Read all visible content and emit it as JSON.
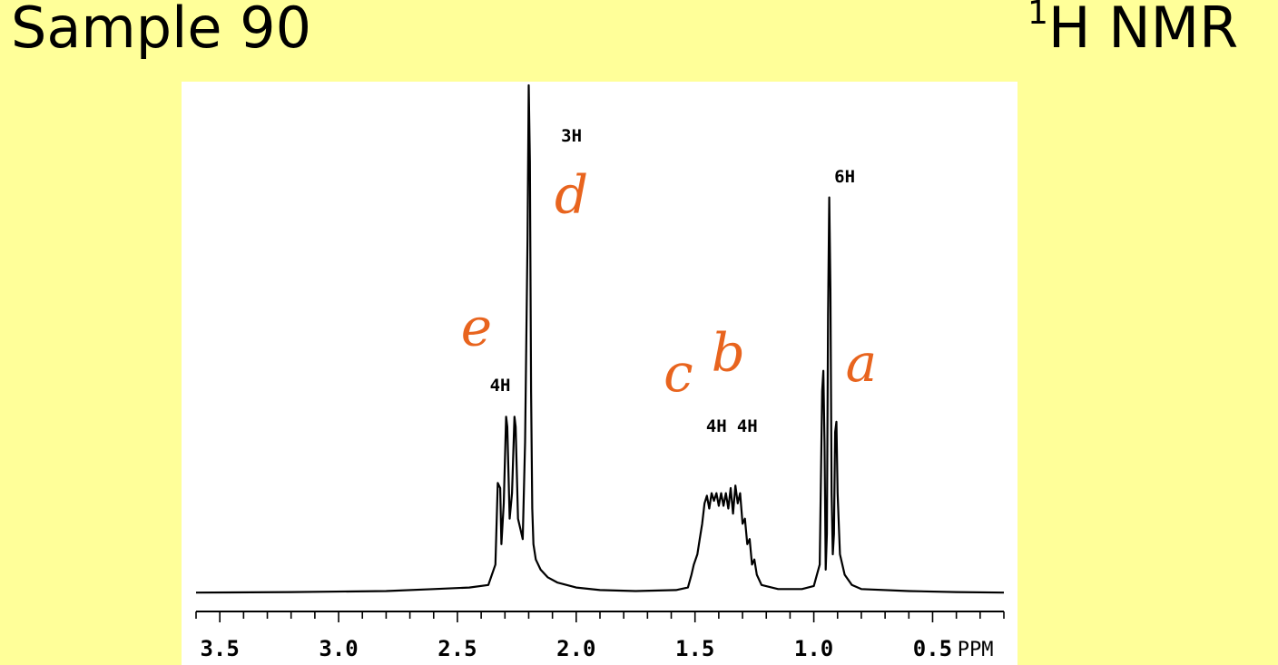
{
  "slide": {
    "title": "Sample 90",
    "subtitle_sup": "1",
    "subtitle_main": "H NMR"
  },
  "colors": {
    "background": "#FFFF99",
    "panel": "#FFFFFF",
    "trace": "#000000",
    "handwriting": "#E8641E"
  },
  "chart_data": {
    "type": "line",
    "title": "",
    "xlabel": "PPM",
    "ylabel": "",
    "x_reversed": true,
    "xlim": [
      3.6,
      0.2
    ],
    "ylim": [
      0,
      1
    ],
    "grid": false,
    "x_ticks": [
      {
        "value": 3.5,
        "label": "3.5"
      },
      {
        "value": 3.0,
        "label": "3.0"
      },
      {
        "value": 2.5,
        "label": "2.5"
      },
      {
        "value": 2.0,
        "label": "2.0"
      },
      {
        "value": 1.5,
        "label": "1.5"
      },
      {
        "value": 1.0,
        "label": "1.0"
      },
      {
        "value": 0.5,
        "label": "0.5"
      }
    ],
    "minor_tick_step": 0.1,
    "series": [
      {
        "points": [
          [
            3.6,
            0.005
          ],
          [
            3.2,
            0.006
          ],
          [
            2.8,
            0.008
          ],
          [
            2.6,
            0.012
          ],
          [
            2.45,
            0.015
          ],
          [
            2.37,
            0.02
          ],
          [
            2.34,
            0.06
          ],
          [
            2.33,
            0.22
          ],
          [
            2.32,
            0.21
          ],
          [
            2.315,
            0.1
          ],
          [
            2.305,
            0.18
          ],
          [
            2.295,
            0.35
          ],
          [
            2.29,
            0.33
          ],
          [
            2.28,
            0.15
          ],
          [
            2.27,
            0.2
          ],
          [
            2.26,
            0.35
          ],
          [
            2.255,
            0.33
          ],
          [
            2.245,
            0.15
          ],
          [
            2.235,
            0.13
          ],
          [
            2.225,
            0.11
          ],
          [
            2.215,
            0.3
          ],
          [
            2.205,
            0.7
          ],
          [
            2.2,
            1.0
          ],
          [
            2.195,
            0.85
          ],
          [
            2.19,
            0.4
          ],
          [
            2.185,
            0.17
          ],
          [
            2.18,
            0.1
          ],
          [
            2.17,
            0.07
          ],
          [
            2.15,
            0.05
          ],
          [
            2.12,
            0.035
          ],
          [
            2.08,
            0.025
          ],
          [
            2.0,
            0.015
          ],
          [
            1.9,
            0.01
          ],
          [
            1.75,
            0.008
          ],
          [
            1.58,
            0.01
          ],
          [
            1.53,
            0.015
          ],
          [
            1.515,
            0.04
          ],
          [
            1.505,
            0.06
          ],
          [
            1.49,
            0.08
          ],
          [
            1.48,
            0.11
          ],
          [
            1.47,
            0.14
          ],
          [
            1.46,
            0.18
          ],
          [
            1.45,
            0.195
          ],
          [
            1.44,
            0.17
          ],
          [
            1.43,
            0.2
          ],
          [
            1.42,
            0.185
          ],
          [
            1.41,
            0.2
          ],
          [
            1.4,
            0.175
          ],
          [
            1.39,
            0.2
          ],
          [
            1.38,
            0.175
          ],
          [
            1.37,
            0.2
          ],
          [
            1.36,
            0.17
          ],
          [
            1.35,
            0.21
          ],
          [
            1.34,
            0.16
          ],
          [
            1.33,
            0.215
          ],
          [
            1.32,
            0.18
          ],
          [
            1.31,
            0.2
          ],
          [
            1.3,
            0.14
          ],
          [
            1.29,
            0.15
          ],
          [
            1.28,
            0.1
          ],
          [
            1.27,
            0.11
          ],
          [
            1.26,
            0.06
          ],
          [
            1.25,
            0.07
          ],
          [
            1.24,
            0.04
          ],
          [
            1.22,
            0.02
          ],
          [
            1.15,
            0.012
          ],
          [
            1.05,
            0.012
          ],
          [
            1.0,
            0.018
          ],
          [
            0.975,
            0.06
          ],
          [
            0.965,
            0.4
          ],
          [
            0.96,
            0.44
          ],
          [
            0.955,
            0.3
          ],
          [
            0.95,
            0.05
          ],
          [
            0.945,
            0.12
          ],
          [
            0.94,
            0.55
          ],
          [
            0.935,
            0.78
          ],
          [
            0.93,
            0.6
          ],
          [
            0.925,
            0.2
          ],
          [
            0.92,
            0.08
          ],
          [
            0.915,
            0.12
          ],
          [
            0.91,
            0.32
          ],
          [
            0.905,
            0.34
          ],
          [
            0.9,
            0.2
          ],
          [
            0.89,
            0.08
          ],
          [
            0.87,
            0.04
          ],
          [
            0.84,
            0.02
          ],
          [
            0.8,
            0.012
          ],
          [
            0.6,
            0.008
          ],
          [
            0.4,
            0.006
          ],
          [
            0.2,
            0.005
          ]
        ]
      }
    ],
    "integration_labels": [
      {
        "text": "4H",
        "x": 2.32,
        "y": 0.4
      },
      {
        "text": "3H",
        "x": 2.02,
        "y": 0.89
      },
      {
        "text": "6H",
        "x": 0.87,
        "y": 0.81
      },
      {
        "text": "4H",
        "x": 1.41,
        "y": 0.32
      },
      {
        "text": "4H",
        "x": 1.28,
        "y": 0.32
      }
    ],
    "handwritten_labels": [
      {
        "letter": "e",
        "x": 2.42,
        "y": 0.49
      },
      {
        "letter": "d",
        "x": 2.02,
        "y": 0.75
      },
      {
        "letter": "c",
        "x": 1.57,
        "y": 0.4
      },
      {
        "letter": "b",
        "x": 1.36,
        "y": 0.44
      },
      {
        "letter": "a",
        "x": 0.8,
        "y": 0.42
      }
    ]
  }
}
